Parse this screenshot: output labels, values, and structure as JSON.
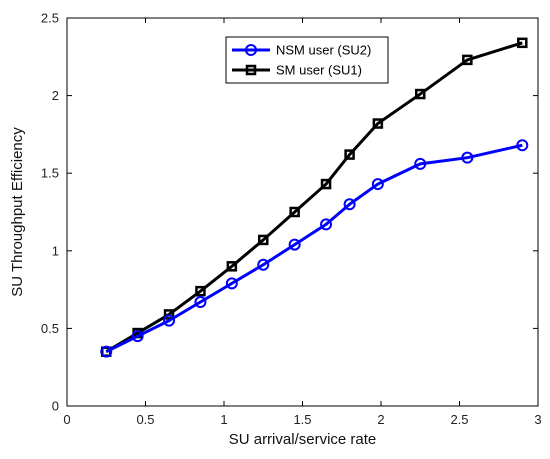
{
  "chart_data": {
    "type": "line",
    "xlabel": "SU arrival/service rate",
    "ylabel": "SU Throughput Efficiency",
    "xlim": [
      0,
      3
    ],
    "ylim": [
      0,
      2.5
    ],
    "xticks": [
      0,
      0.5,
      1,
      1.5,
      2,
      2.5,
      3
    ],
    "yticks": [
      0,
      0.5,
      1,
      1.5,
      2,
      2.5
    ],
    "xtick_labels": [
      "0",
      "0.5",
      "1",
      "1.5",
      "2",
      "2.5",
      "3"
    ],
    "ytick_labels": [
      "0",
      "0.5",
      "1",
      "1.5",
      "2",
      "2.5"
    ],
    "grid": false,
    "box": true,
    "legend_location": "top-center",
    "series": [
      {
        "name": "NSM user (SU2)",
        "color": "#0000ff",
        "marker": "circle",
        "x": [
          0.25,
          0.45,
          0.65,
          0.85,
          1.05,
          1.25,
          1.45,
          1.65,
          1.8,
          1.98,
          2.25,
          2.55,
          2.9
        ],
        "y": [
          0.35,
          0.45,
          0.55,
          0.67,
          0.79,
          0.91,
          1.04,
          1.17,
          1.3,
          1.43,
          1.56,
          1.6,
          1.68
        ]
      },
      {
        "name": "SM user (SU1)",
        "color": "#000000",
        "marker": "square",
        "x": [
          0.25,
          0.45,
          0.65,
          0.85,
          1.05,
          1.25,
          1.45,
          1.65,
          1.8,
          1.98,
          2.25,
          2.55,
          2.9
        ],
        "y": [
          0.35,
          0.47,
          0.59,
          0.74,
          0.9,
          1.07,
          1.25,
          1.43,
          1.62,
          1.82,
          2.01,
          2.23,
          2.34
        ]
      }
    ]
  }
}
